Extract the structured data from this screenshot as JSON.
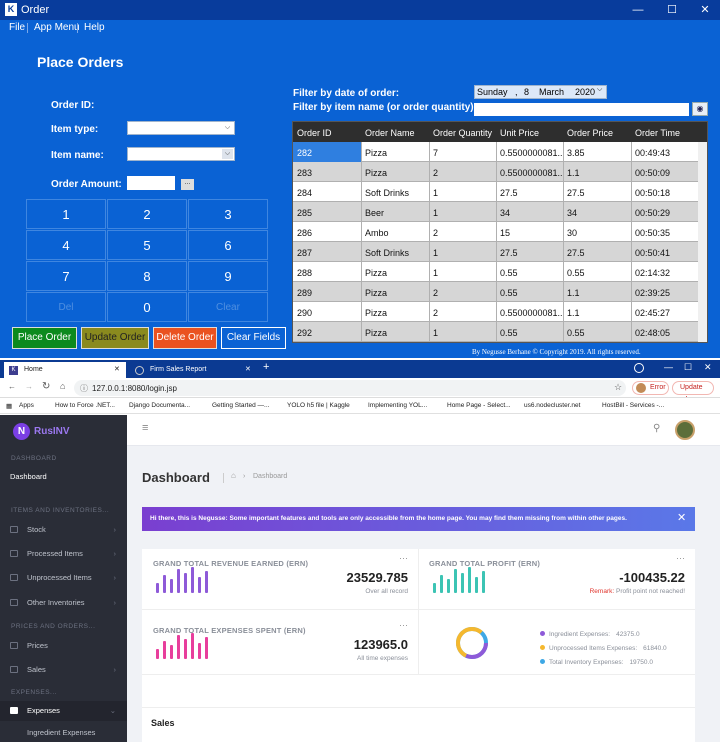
{
  "order_window": {
    "title": "Order",
    "menu": [
      "File",
      "App Menu",
      "Help"
    ],
    "heading": "Place Orders",
    "labels": {
      "order_id": "Order ID:",
      "item_type": "Item type:",
      "item_name": "Item name:",
      "order_amount": "Order Amount:"
    },
    "amount_button": "...",
    "keypad": [
      "1",
      "2",
      "3",
      "4",
      "5",
      "6",
      "7",
      "8",
      "9",
      "Del",
      "0",
      "Clear"
    ],
    "buttons": {
      "place": "Place Order",
      "update": "Update Order",
      "delete": "Delete Order",
      "clear": "Clear Fields"
    },
    "filter_date_label": "Filter by date of order:",
    "filter_name_label": "Filter by item name (or order quantity):",
    "date": {
      "weekday": "Sunday",
      "sep": ",",
      "day": "8",
      "month": "March",
      "year": "2020"
    },
    "table": {
      "headers": [
        "Order ID",
        "Order Name",
        "Order Quantity",
        "Unit Price",
        "Order Price",
        "Order Time"
      ],
      "rows": [
        [
          "282",
          "Pizza",
          "7",
          "0.5500000081...",
          "3.85",
          "00:49:43"
        ],
        [
          "283",
          "Pizza",
          "2",
          "0.5500000081...",
          "1.1",
          "00:50:09"
        ],
        [
          "284",
          "Soft Drinks",
          "1",
          "27.5",
          "27.5",
          "00:50:18"
        ],
        [
          "285",
          "Beer",
          "1",
          "34",
          "34",
          "00:50:29"
        ],
        [
          "286",
          "Ambo",
          "2",
          "15",
          "30",
          "00:50:35"
        ],
        [
          "287",
          "Soft Drinks",
          "1",
          "27.5",
          "27.5",
          "00:50:41"
        ],
        [
          "288",
          "Pizza",
          "1",
          "0.55",
          "0.55",
          "02:14:32"
        ],
        [
          "289",
          "Pizza",
          "2",
          "0.55",
          "1.1",
          "02:39:25"
        ],
        [
          "290",
          "Pizza",
          "2",
          "0.5500000081...",
          "1.1",
          "02:45:27"
        ],
        [
          "292",
          "Pizza",
          "1",
          "0.55",
          "0.55",
          "02:48:05"
        ]
      ]
    },
    "footer": "By Negusse Berhane   © Copyright 2019. All rights reserved."
  },
  "browser": {
    "tabs": [
      {
        "label": "Home",
        "active": true
      },
      {
        "label": "Firm Sales Report",
        "active": false
      }
    ],
    "url": "127.0.0.1:8080/login.jsp",
    "error_label": "Error",
    "update_label": "Update",
    "bookmarks": [
      "Apps",
      "How to Force .NET...",
      "Django Documenta...",
      "Getting Started —...",
      "YOLO h5 file | Kaggle",
      "Implementing YOL...",
      "Home Page - Select...",
      "us6.nodecluster.net",
      "HostBill - Services -..."
    ]
  },
  "dashboard": {
    "brand": "RusINV",
    "brand_initial": "N",
    "sidebar": {
      "sec_dashboard": "DASHBOARD",
      "dashboard": "Dashboard",
      "sec_items": "ITEMS AND INVENTORIES...",
      "stock": "Stock",
      "processed": "Processed Items",
      "unprocessed": "Unprocessed Items",
      "other": "Other Inventories",
      "sec_prices": "PRICES AND ORDERS...",
      "prices": "Prices",
      "sales": "Sales",
      "sec_expenses": "EXPENSES...",
      "expenses": "Expenses",
      "ingredient": "Ingredient Expenses"
    },
    "page_title": "Dashboard",
    "breadcrumb": "Dashboard",
    "alert": "Hi there, this is Negusse: Some important features and tools are only accessible from the home page. You may find them missing from within other pages.",
    "revenue": {
      "title": "GRAND TOTAL REVENUE EARNED (ERN)",
      "value": "23529.785",
      "sub": "Over all record"
    },
    "profit": {
      "title": "GRAND TOTAL PROFIT (ERN)",
      "value": "-100435.22",
      "remark_label": "Remark:",
      "remark": "Profit point not reached!"
    },
    "expenses": {
      "title": "GRAND TOTAL EXPENSES SPENT (ERN)",
      "value": "123965.0",
      "sub": "All time expenses"
    },
    "legend": [
      {
        "label": "Ingredient Expenses:",
        "value": "42375.0",
        "color": "#8e5ad8"
      },
      {
        "label": "Unprocessed Items Expenses:",
        "value": "61840.0",
        "color": "#f5b82e"
      },
      {
        "label": "Total Inventory Expenses:",
        "value": "19750.0",
        "color": "#3ea8e5"
      }
    ],
    "sales_title": "Sales",
    "colors": {
      "revenue_bars": "#8e5ad8",
      "profit_bars": "#3cc4b4",
      "expense_bars": "#e83e9c"
    }
  }
}
